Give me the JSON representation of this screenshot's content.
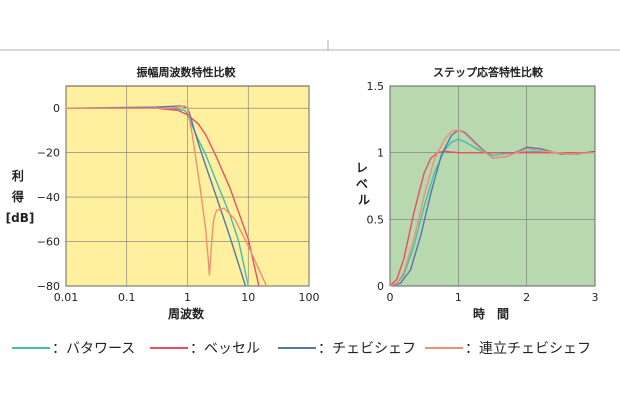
{
  "legend": [
    {
      "label": "：バタワース",
      "color": "#40c0b0"
    },
    {
      "label": "：ベッセル",
      "color": "#e85060"
    },
    {
      "label": "：チェビシェフ",
      "color": "#5578a8"
    },
    {
      "label": "：連立チェビシェフ",
      "color": "#f09070"
    }
  ],
  "chart_data": [
    {
      "type": "line",
      "title": "振幅周波数特性比較",
      "xlabel": "周波数",
      "ylabel": "利得[dB]",
      "xscale": "log",
      "xlim": [
        0.01,
        100
      ],
      "ylim": [
        -80,
        10
      ],
      "xticks": [
        "0.01",
        "0.1",
        "1",
        "10",
        "100"
      ],
      "yticks": [
        "0",
        "−20",
        "−40",
        "−60",
        "−80"
      ],
      "background": "#fff0a0",
      "grid": true,
      "series": [
        {
          "color": "#40c0b0",
          "x": [
            0.01,
            0.5,
            0.9,
            1.0,
            1.2,
            1.5,
            2,
            3,
            5,
            7,
            10
          ],
          "y": [
            0,
            0,
            -1,
            -3,
            -8,
            -14,
            -21,
            -33,
            -48,
            -60,
            -80
          ]
        },
        {
          "color": "#e85060",
          "x": [
            0.01,
            0.3,
            0.7,
            1.0,
            1.5,
            2,
            3,
            5,
            7,
            10,
            15
          ],
          "y": [
            0,
            0,
            -1,
            -3,
            -7,
            -12,
            -22,
            -36,
            -47,
            -59,
            -80
          ]
        },
        {
          "color": "#5578a8",
          "x": [
            0.01,
            0.3,
            0.8,
            1.0,
            1.1,
            1.3,
            1.6,
            2,
            3,
            5,
            9
          ],
          "y": [
            0,
            0.5,
            1,
            0,
            -3,
            -10,
            -18,
            -26,
            -40,
            -58,
            -80
          ]
        },
        {
          "color": "#f09070",
          "x": [
            0.01,
            0.5,
            0.9,
            1.0,
            1.2,
            1.6,
            2.0,
            2.3,
            2.5,
            2.7,
            3.0,
            4,
            6,
            10,
            20
          ],
          "y": [
            0,
            0,
            1,
            0,
            -12,
            -35,
            -55,
            -75,
            -60,
            -50,
            -46,
            -45,
            -50,
            -62,
            -80
          ]
        }
      ]
    },
    {
      "type": "line",
      "title": "ステップ応答特性比較",
      "xlabel": "時　間",
      "ylabel": "レベル",
      "xlim": [
        0,
        3
      ],
      "ylim": [
        0,
        1.5
      ],
      "xticks": [
        "0",
        "1",
        "2",
        "3"
      ],
      "yticks": [
        "0",
        "0.5",
        "1",
        "1.5"
      ],
      "background": "#b8d8b0",
      "grid": true,
      "series": [
        {
          "color": "#40c0b0",
          "x": [
            0,
            0.1,
            0.2,
            0.35,
            0.5,
            0.65,
            0.8,
            0.9,
            1.0,
            1.1,
            1.3,
            1.5,
            1.8,
            2.1,
            2.4,
            2.7,
            3.0
          ],
          "y": [
            0,
            0.02,
            0.08,
            0.3,
            0.6,
            0.85,
            1.02,
            1.08,
            1.1,
            1.08,
            1.02,
            0.98,
            1.0,
            1.01,
            1.0,
            1.0,
            1.0
          ]
        },
        {
          "color": "#e85060",
          "x": [
            0,
            0.1,
            0.2,
            0.35,
            0.5,
            0.6,
            0.7,
            0.8,
            1.0,
            1.5,
            2.0,
            2.5,
            3.0
          ],
          "y": [
            0,
            0.05,
            0.2,
            0.55,
            0.85,
            0.96,
            1.0,
            1.01,
            1.0,
            1.0,
            1.0,
            1.0,
            1.0
          ]
        },
        {
          "color": "#5578a8",
          "x": [
            0,
            0.15,
            0.3,
            0.45,
            0.6,
            0.75,
            0.9,
            1.0,
            1.1,
            1.3,
            1.5,
            1.7,
            2.0,
            2.2,
            2.5,
            2.75,
            3.0
          ],
          "y": [
            0,
            0.02,
            0.12,
            0.38,
            0.7,
            0.98,
            1.13,
            1.17,
            1.15,
            1.05,
            0.96,
            0.97,
            1.04,
            1.03,
            0.99,
            0.99,
            1.01
          ]
        },
        {
          "color": "#f09070",
          "x": [
            0,
            0.1,
            0.2,
            0.35,
            0.5,
            0.65,
            0.8,
            0.9,
            1.0,
            1.1,
            1.3,
            1.5,
            1.7,
            2.0,
            2.3,
            2.6,
            3.0
          ],
          "y": [
            0,
            0.02,
            0.1,
            0.35,
            0.68,
            0.95,
            1.1,
            1.16,
            1.17,
            1.14,
            1.04,
            0.96,
            0.97,
            1.03,
            1.01,
            0.99,
            1.0
          ]
        }
      ]
    }
  ]
}
